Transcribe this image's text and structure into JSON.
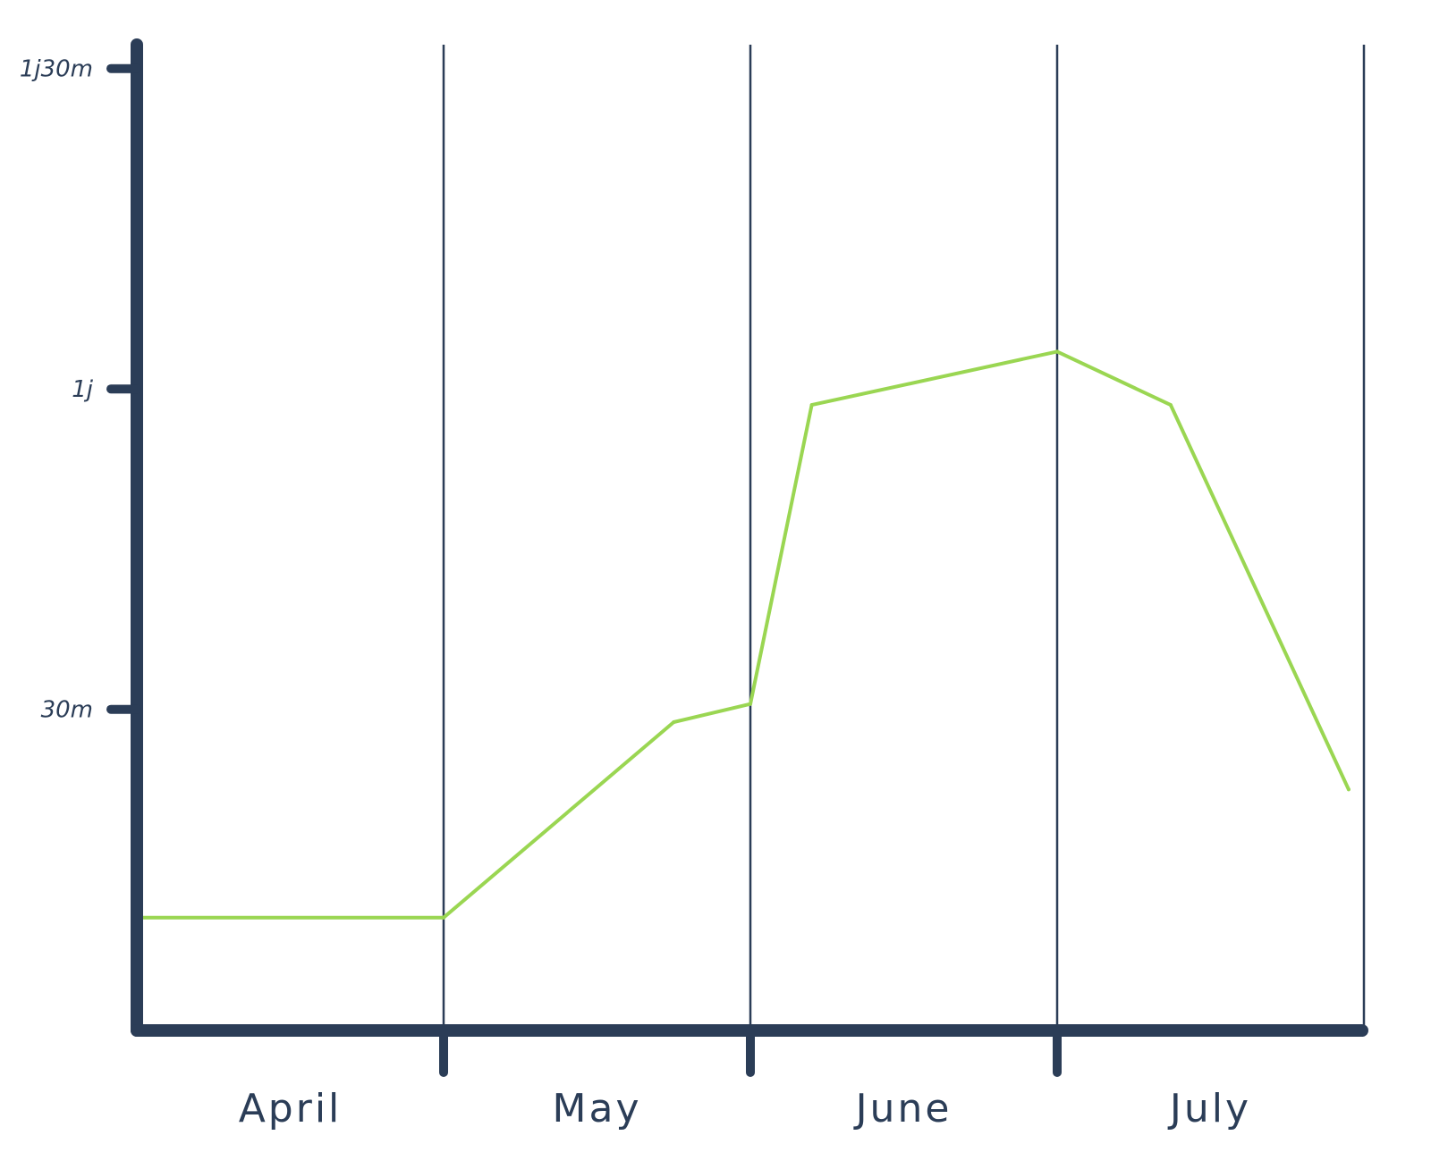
{
  "colors": {
    "axis": "#2b3d57",
    "series": "#9ad652",
    "background": "#ffffff"
  },
  "chart_data": {
    "type": "line",
    "title": "",
    "xlabel": "",
    "ylabel": "",
    "grid": "vertical lines at month boundaries",
    "x_tick_labels": [
      "April",
      "May",
      "June",
      "July"
    ],
    "y_ticks": [
      {
        "value": 30,
        "label": "30m"
      },
      {
        "value": 60,
        "label": "1j"
      },
      {
        "value": 90,
        "label": "1j30m"
      }
    ],
    "xlim": [
      0,
      4
    ],
    "ylim": [
      0,
      95
    ],
    "series": [
      {
        "color": "#9ad652",
        "points": [
          {
            "x": 0.0,
            "y": 10.5
          },
          {
            "x": 1.0,
            "y": 10.5
          },
          {
            "x": 1.75,
            "y": 28.8
          },
          {
            "x": 2.0,
            "y": 30.5
          },
          {
            "x": 2.2,
            "y": 58.5
          },
          {
            "x": 3.0,
            "y": 63.5
          },
          {
            "x": 3.37,
            "y": 58.5
          },
          {
            "x": 3.95,
            "y": 22.5
          }
        ]
      }
    ]
  }
}
